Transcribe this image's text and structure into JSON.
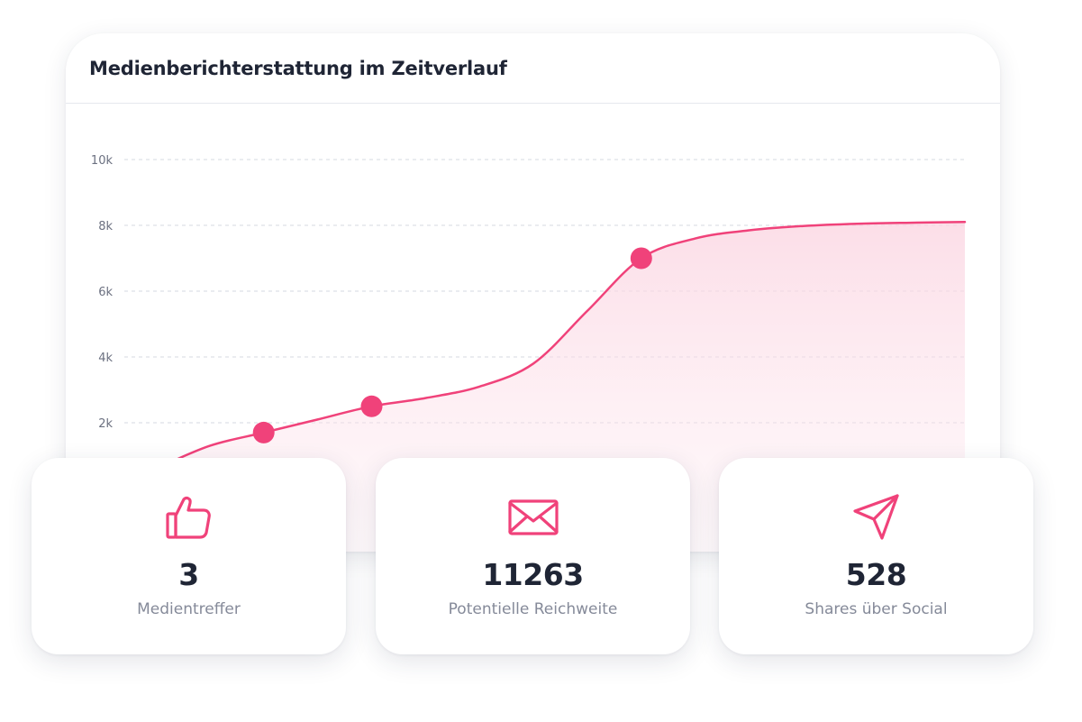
{
  "chart_title": "Medienberichterstattung im Zeitverlauf",
  "accent_color": "#f0427a",
  "chart_data": {
    "type": "area",
    "title": "Medienberichterstattung im Zeitverlauf",
    "y_tick_labels": [
      "2k",
      "4k",
      "6k",
      "8k",
      "10k"
    ],
    "y_tick_values": [
      2000,
      4000,
      6000,
      8000,
      10000
    ],
    "ylim": [
      0,
      10000
    ],
    "grid": true,
    "curve_y": [
      600,
      1300,
      1700,
      2100,
      2500,
      2750,
      3100,
      3800,
      5400,
      7000,
      7600,
      7850,
      7980,
      8050,
      8080,
      8100
    ],
    "markers": [
      {
        "index": 2,
        "value": 1700
      },
      {
        "index": 4,
        "value": 2500
      },
      {
        "index": 9,
        "value": 7000
      }
    ]
  },
  "stats": [
    {
      "icon": "thumbs-up-icon",
      "value": "3",
      "label": "Medientreffer"
    },
    {
      "icon": "envelope-icon",
      "value": "11263",
      "label": "Potentielle Reichweite"
    },
    {
      "icon": "send-icon",
      "value": "528",
      "label": "Shares über Social"
    }
  ]
}
